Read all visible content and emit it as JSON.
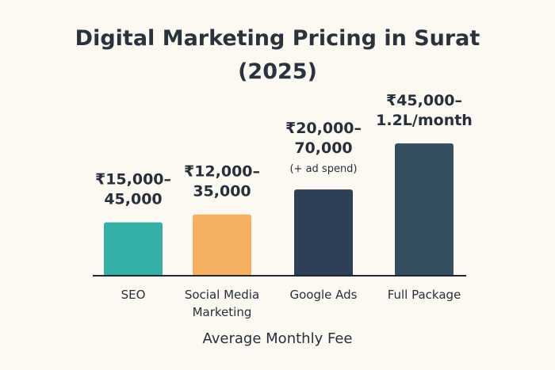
{
  "chart_data": {
    "type": "bar",
    "title_lines": [
      "Digital Marketing Pricing in Surat",
      "(2025)"
    ],
    "xlabel": "Average Monthly Fee",
    "ylabel": "",
    "categories": [
      [
        "SEO"
      ],
      [
        "Social Media",
        "Marketing"
      ],
      [
        "Google Ads"
      ],
      [
        "Full Package"
      ]
    ],
    "values": [
      40,
      46,
      65,
      100
    ],
    "value_scale": "relative bar height (no y-axis shown), max = 100",
    "ylim": [
      0,
      100
    ],
    "data_labels": [
      {
        "lines": [
          "₹15,000–",
          "45,000"
        ],
        "note": ""
      },
      {
        "lines": [
          "₹12,000–",
          "35,000"
        ],
        "note": ""
      },
      {
        "lines": [
          "₹20,000–",
          "70,000"
        ],
        "note": "(+ ad spend)"
      },
      {
        "lines": [
          "₹45,000–",
          "1.2L/month"
        ],
        "note": ""
      }
    ],
    "colors": [
      "#35b0a7",
      "#f6b062",
      "#2f3f57",
      "#354e60"
    ],
    "grid": false,
    "legend": "none"
  }
}
